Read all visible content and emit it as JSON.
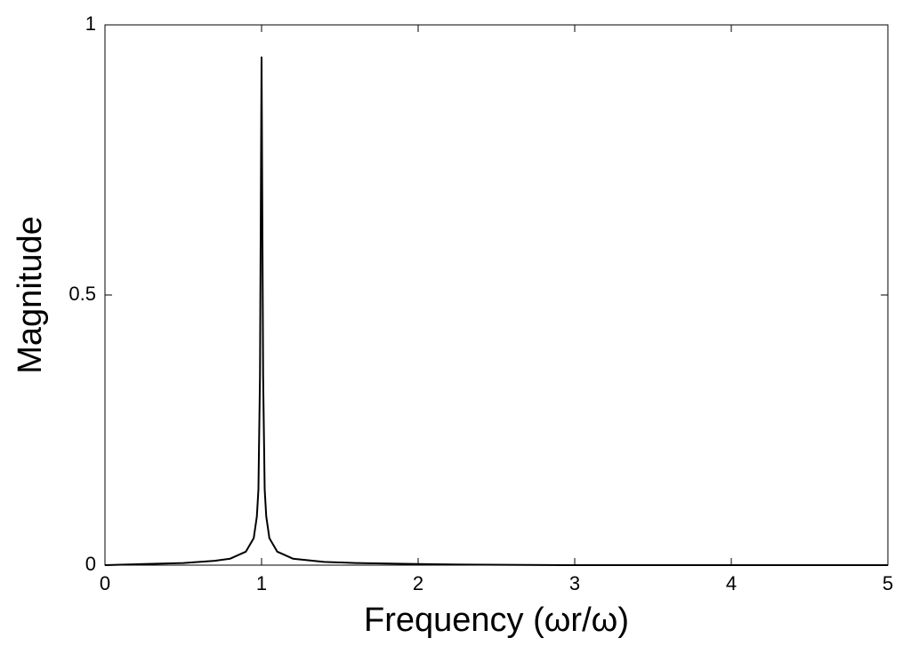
{
  "chart_data": {
    "type": "line",
    "xlabel": "Frequency (ωr/ω)",
    "ylabel": "Magnitude",
    "x": [
      0,
      0.25,
      0.5,
      0.7,
      0.8,
      0.9,
      0.95,
      0.97,
      0.98,
      0.99,
      1.0,
      1.01,
      1.02,
      1.03,
      1.05,
      1.1,
      1.2,
      1.4,
      1.6,
      2,
      2.3,
      3,
      4,
      5
    ],
    "series": [
      {
        "color": "#000000",
        "values": [
          0,
          0.002,
          0.004,
          0.008,
          0.012,
          0.025,
          0.05,
          0.09,
          0.14,
          0.35,
          0.94,
          0.35,
          0.14,
          0.09,
          0.05,
          0.025,
          0.012,
          0.006,
          0.004,
          0.002,
          0.001,
          0,
          0,
          0
        ]
      }
    ],
    "xlim": [
      0,
      5
    ],
    "ylim": [
      0,
      1
    ],
    "xticks": [
      0,
      1,
      2,
      3,
      4,
      5
    ],
    "yticks": [
      0,
      0.5,
      1
    ],
    "grid": false
  }
}
